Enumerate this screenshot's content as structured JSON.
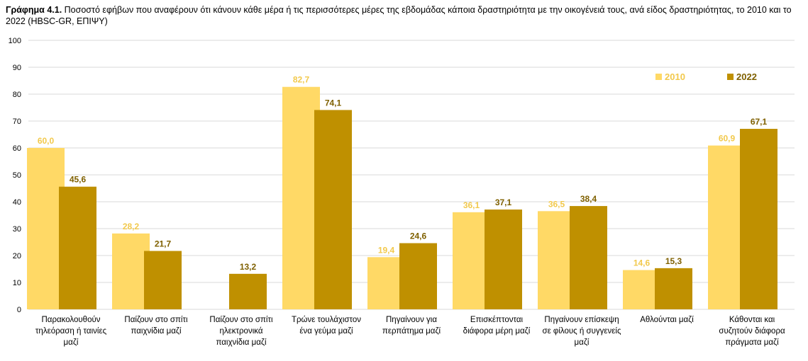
{
  "title": {
    "prefix": "Γράφημα 4.1.",
    "text": " Ποσοστό εφήβων που αναφέρουν ότι κάνουν κάθε μέρα ή τις περισσότερες μέρες της εβδομάδας κάποια δραστηριότητα με την οικογένειά τους, ανά είδος δραστηριότητας, το 2010 και το 2022 (HBSC-GR, ΕΠΙΨΥ)"
  },
  "colors": {
    "s2010": "#FFD966",
    "s2022": "#BF9000",
    "label2010": "#F2C94C",
    "label2022": "#7F6000",
    "grid": "#D9D9D9"
  },
  "chart_data": {
    "type": "bar",
    "categories": [
      [
        "Παρακολουθούν",
        "τηλεόραση ή ταινίες",
        "μαζί"
      ],
      [
        "Παίζουν στο σπίτι",
        "παιχνίδια μαζί"
      ],
      [
        "Παίζουν στο σπίτι",
        "ηλεκτρονικά",
        "παιχνίδια μαζί"
      ],
      [
        "Τρώνε τουλάχιστον",
        "ένα γεύμα μαζί"
      ],
      [
        "Πηγαίνουν για",
        "περπάτημα μαζί"
      ],
      [
        "Επισκέπτονται",
        "διάφορα μέρη μαζί"
      ],
      [
        "Πηγαίνουν επίσκεψη",
        "σε φίλους ή συγγενείς",
        "μαζί"
      ],
      [
        "Αθλούνται μαζί"
      ],
      [
        "Κάθονται και",
        "συζητούν διάφορα",
        "πράγματα μαζί"
      ]
    ],
    "series": [
      {
        "name": "2010",
        "values": [
          60.0,
          28.2,
          null,
          82.7,
          19.4,
          36.1,
          36.5,
          14.6,
          60.9
        ],
        "labels": [
          "60,0",
          "28,2",
          "",
          "82,7",
          "19,4",
          "36,1",
          "36,5",
          "14,6",
          "60,9"
        ]
      },
      {
        "name": "2022",
        "values": [
          45.6,
          21.7,
          13.2,
          74.1,
          24.6,
          37.1,
          38.4,
          15.3,
          67.1
        ],
        "labels": [
          "45,6",
          "21,7",
          "13,2",
          "74,1",
          "24,6",
          "37,1",
          "38,4",
          "15,3",
          "67,1"
        ]
      }
    ],
    "ylim": [
      0,
      100
    ],
    "yticks": [
      "0",
      "10",
      "20",
      "30",
      "40",
      "50",
      "60",
      "70",
      "80",
      "90",
      "100"
    ],
    "grid": true,
    "legend_position": "top-right"
  }
}
